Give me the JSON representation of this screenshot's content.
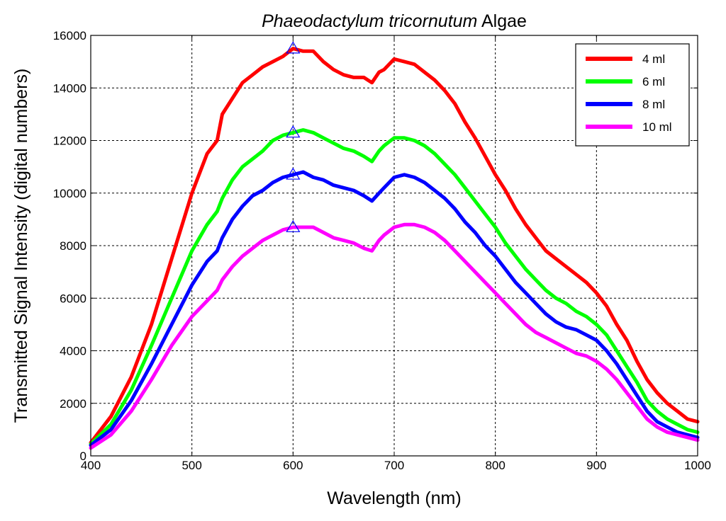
{
  "chart_data": {
    "type": "line",
    "title_italic": "Phaeodactylum tricornutum",
    "title_rest": "Algae",
    "xlabel": "Wavelength (nm)",
    "ylabel": "Transmitted Signal Intensity (digital numbers)",
    "xlim": [
      400,
      1000
    ],
    "ylim": [
      0,
      16000
    ],
    "xticks": [
      400,
      500,
      600,
      700,
      800,
      900,
      1000
    ],
    "yticks": [
      0,
      2000,
      4000,
      6000,
      8000,
      10000,
      12000,
      14000,
      16000
    ],
    "grid": true,
    "legend_position": "top-right",
    "series": [
      {
        "name": "4 ml",
        "color": "#ff0000",
        "x": [
          400,
          420,
          440,
          460,
          480,
          500,
          515,
          525,
          530,
          540,
          550,
          560,
          570,
          580,
          590,
          600,
          610,
          620,
          630,
          640,
          650,
          660,
          670,
          678,
          685,
          690,
          700,
          710,
          720,
          730,
          740,
          750,
          760,
          770,
          780,
          790,
          800,
          810,
          820,
          830,
          840,
          850,
          860,
          870,
          880,
          890,
          900,
          910,
          920,
          930,
          940,
          950,
          960,
          970,
          980,
          990,
          1000
        ],
        "y": [
          500,
          1500,
          3000,
          5000,
          7500,
          10000,
          11500,
          12000,
          13000,
          13600,
          14200,
          14500,
          14800,
          15000,
          15200,
          15500,
          15400,
          15400,
          15000,
          14700,
          14500,
          14400,
          14400,
          14200,
          14600,
          14700,
          15100,
          15000,
          14900,
          14600,
          14300,
          13900,
          13400,
          12700,
          12100,
          11400,
          10700,
          10100,
          9400,
          8800,
          8300,
          7800,
          7500,
          7200,
          6900,
          6600,
          6200,
          5700,
          5000,
          4400,
          3600,
          2900,
          2400,
          2000,
          1700,
          1400,
          1300
        ]
      },
      {
        "name": "6 ml",
        "color": "#00ff00",
        "x": [
          400,
          420,
          440,
          460,
          480,
          500,
          515,
          525,
          530,
          540,
          550,
          560,
          570,
          580,
          590,
          600,
          610,
          620,
          630,
          640,
          650,
          660,
          670,
          678,
          685,
          690,
          700,
          710,
          720,
          730,
          740,
          750,
          760,
          770,
          780,
          790,
          800,
          810,
          820,
          830,
          840,
          850,
          860,
          870,
          880,
          890,
          900,
          910,
          920,
          930,
          940,
          950,
          960,
          970,
          980,
          990,
          1000
        ],
        "y": [
          450,
          1200,
          2500,
          4200,
          6000,
          7800,
          8800,
          9300,
          9800,
          10500,
          11000,
          11300,
          11600,
          12000,
          12200,
          12300,
          12400,
          12300,
          12100,
          11900,
          11700,
          11600,
          11400,
          11200,
          11600,
          11800,
          12100,
          12100,
          12000,
          11800,
          11500,
          11100,
          10700,
          10200,
          9700,
          9200,
          8700,
          8100,
          7600,
          7100,
          6700,
          6300,
          6000,
          5800,
          5500,
          5300,
          5000,
          4600,
          4000,
          3400,
          2800,
          2100,
          1700,
          1400,
          1200,
          1000,
          900
        ]
      },
      {
        "name": "8 ml",
        "color": "#0000ff",
        "x": [
          400,
          420,
          440,
          460,
          480,
          500,
          515,
          525,
          530,
          540,
          550,
          560,
          570,
          580,
          590,
          600,
          610,
          620,
          630,
          640,
          650,
          660,
          670,
          678,
          685,
          690,
          700,
          710,
          720,
          730,
          740,
          750,
          760,
          770,
          780,
          790,
          800,
          810,
          820,
          830,
          840,
          850,
          860,
          870,
          880,
          890,
          900,
          910,
          920,
          930,
          940,
          950,
          960,
          970,
          980,
          990,
          1000
        ],
        "y": [
          400,
          1000,
          2100,
          3500,
          5000,
          6500,
          7400,
          7800,
          8300,
          9000,
          9500,
          9900,
          10100,
          10400,
          10600,
          10700,
          10800,
          10600,
          10500,
          10300,
          10200,
          10100,
          9900,
          9700,
          10000,
          10200,
          10600,
          10700,
          10600,
          10400,
          10100,
          9800,
          9400,
          8900,
          8500,
          8000,
          7600,
          7100,
          6600,
          6200,
          5800,
          5400,
          5100,
          4900,
          4800,
          4600,
          4400,
          4000,
          3500,
          2900,
          2300,
          1700,
          1300,
          1100,
          900,
          800,
          700
        ]
      },
      {
        "name": "10 ml",
        "color": "#ff00ff",
        "x": [
          400,
          420,
          440,
          460,
          480,
          500,
          515,
          525,
          530,
          540,
          550,
          560,
          570,
          580,
          590,
          600,
          610,
          620,
          630,
          640,
          650,
          660,
          670,
          678,
          685,
          690,
          700,
          710,
          720,
          730,
          740,
          750,
          760,
          770,
          780,
          790,
          800,
          810,
          820,
          830,
          840,
          850,
          860,
          870,
          880,
          890,
          900,
          910,
          920,
          930,
          940,
          950,
          960,
          970,
          980,
          990,
          1000
        ],
        "y": [
          300,
          800,
          1700,
          2900,
          4200,
          5300,
          5900,
          6300,
          6700,
          7200,
          7600,
          7900,
          8200,
          8400,
          8600,
          8700,
          8700,
          8700,
          8500,
          8300,
          8200,
          8100,
          7900,
          7800,
          8200,
          8400,
          8700,
          8800,
          8800,
          8700,
          8500,
          8200,
          7800,
          7400,
          7000,
          6600,
          6200,
          5800,
          5400,
          5000,
          4700,
          4500,
          4300,
          4100,
          3900,
          3800,
          3600,
          3300,
          2900,
          2400,
          1900,
          1400,
          1100,
          900,
          800,
          700,
          600
        ]
      }
    ],
    "markers": {
      "symbol": "triangle",
      "color": "#0000ff",
      "x": 600,
      "y": [
        15500,
        12300,
        10700,
        8700
      ]
    }
  }
}
